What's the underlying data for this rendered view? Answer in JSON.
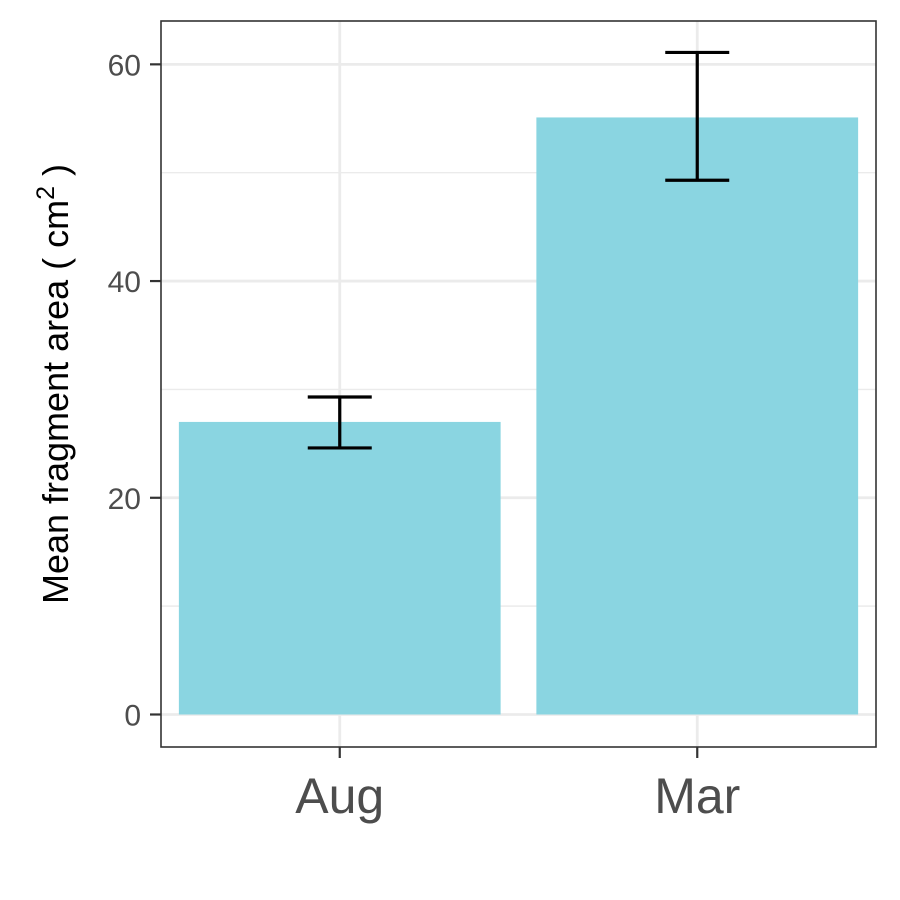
{
  "chart_data": {
    "type": "bar",
    "categories": [
      "Aug",
      "Mar"
    ],
    "values": [
      27.0,
      55.1
    ],
    "error_low": [
      24.6,
      49.3
    ],
    "error_high": [
      29.3,
      61.1
    ],
    "title": "",
    "xlabel": "",
    "ylabel_prefix": "Mean fragment area ( cm",
    "ylabel_superscript": "2",
    "ylabel_suffix": " )",
    "ylim": [
      -3,
      64
    ],
    "yticks": [
      0,
      20,
      40,
      60
    ],
    "ytick_labels": [
      "0",
      "20",
      "40",
      "60"
    ],
    "grid": true,
    "legend": "none",
    "bar_color": "#8AD5E1",
    "panel_border_color": "#333333",
    "grid_color": "#EBEBEB"
  }
}
